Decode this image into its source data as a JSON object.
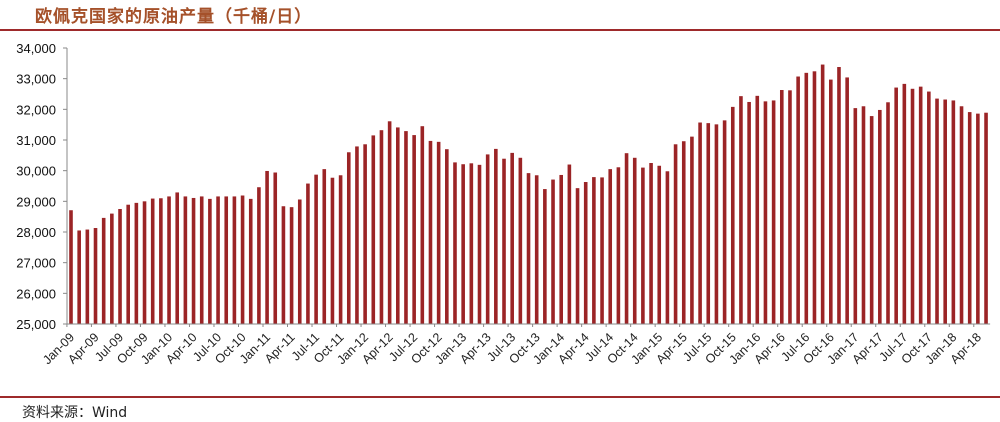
{
  "header": {
    "title": "欧佩克国家的原油产量（千桶/日）"
  },
  "footer": {
    "source": "资料来源：Wind"
  },
  "colors": {
    "bar": "#9b2426",
    "title": "#a5512a",
    "rule": "#9e2a2b",
    "axis": "#888888"
  },
  "chart_data": {
    "type": "bar",
    "title": "欧佩克国家的原油产量（千桶/日）",
    "xlabel": "",
    "ylabel": "",
    "ylim": [
      25000,
      34000
    ],
    "yticks": [
      "25,000",
      "26,000",
      "27,000",
      "28,000",
      "29,000",
      "30,000",
      "31,000",
      "32,000",
      "33,000",
      "34,000"
    ],
    "xtick_labels": [
      "Jan-09",
      "Apr-09",
      "Jul-09",
      "Oct-09",
      "Jan-10",
      "Apr-10",
      "Jul-10",
      "Oct-10",
      "Jan-11",
      "Apr-11",
      "Jul-11",
      "Oct-11",
      "Jan-12",
      "Apr-12",
      "Jul-12",
      "Oct-12",
      "Jan-13",
      "Apr-13",
      "Jul-13",
      "Oct-13",
      "Jan-14",
      "Apr-14",
      "Jul-14",
      "Oct-14",
      "Jan-15",
      "Apr-15",
      "Jul-15",
      "Oct-15",
      "Jan-16",
      "Apr-16",
      "Jul-16",
      "Oct-16",
      "Jan-17",
      "Apr-17",
      "Jul-17",
      "Oct-17",
      "Jan-18",
      "Apr-18"
    ],
    "grid": false,
    "legend": null,
    "series": [
      {
        "name": "OPEC crude oil production",
        "start": "Jan-09",
        "end": "May-18",
        "frequency": "monthly",
        "values": [
          28710,
          28050,
          28080,
          28130,
          28460,
          28600,
          28750,
          28890,
          28950,
          29000,
          29090,
          29100,
          29160,
          29290,
          29160,
          29110,
          29160,
          29080,
          29160,
          29160,
          29160,
          29190,
          29080,
          29460,
          29990,
          29940,
          28840,
          28810,
          29060,
          29580,
          29870,
          30050,
          29770,
          29850,
          30600,
          30790,
          30860,
          31150,
          31320,
          31610,
          31410,
          31290,
          31160,
          31450,
          30970,
          30940,
          30700,
          30270,
          30210,
          30240,
          30190,
          30530,
          30710,
          30390,
          30580,
          30420,
          29920,
          29850,
          29400,
          29710,
          29860,
          30200,
          29430,
          29630,
          29790,
          29780,
          30050,
          30110,
          30570,
          30420,
          30100,
          30250,
          30160,
          29980,
          30860,
          30960,
          31110,
          31570,
          31550,
          31510,
          31640,
          32080,
          32430,
          32240,
          32440,
          32260,
          32290,
          32630,
          32620,
          33070,
          33190,
          33240,
          33460,
          32970,
          33380,
          33040,
          32040,
          32100,
          31780,
          31980,
          32230,
          32710,
          32830,
          32670,
          32740,
          32580,
          32350,
          32320,
          32290,
          32100,
          31910,
          31860,
          31890
        ]
      }
    ]
  }
}
